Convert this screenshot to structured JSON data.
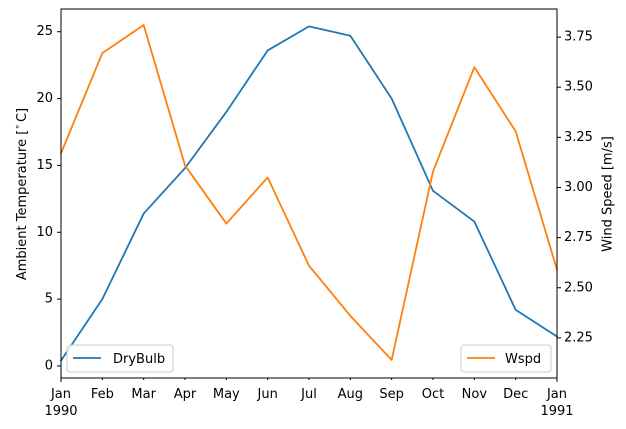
{
  "chart_data": {
    "type": "line",
    "title": "",
    "x": [
      "1990-01",
      "1990-02",
      "1990-03",
      "1990-04",
      "1990-05",
      "1990-06",
      "1990-07",
      "1990-08",
      "1990-09",
      "1990-10",
      "1990-11",
      "1990-12",
      "1991-01"
    ],
    "x_tick_labels": [
      "Jan",
      "Feb",
      "Mar",
      "Apr",
      "May",
      "Jun",
      "Jul",
      "Aug",
      "Sep",
      "Oct",
      "Nov",
      "Dec",
      "Jan"
    ],
    "x_year_labels": [
      "1990",
      "1991"
    ],
    "left_axis": {
      "label": "Ambient Temperature [°C]",
      "label_main": "Ambient Temperature [",
      "label_degree": "∘",
      "label_unit": "C]",
      "ylim": [
        -0.9,
        26.7
      ],
      "ticks": [
        0,
        5,
        10,
        15,
        20,
        25
      ],
      "tick_labels": [
        "0",
        "5",
        "10",
        "15",
        "20",
        "25"
      ]
    },
    "right_axis": {
      "label": "Wind Speed [m/s]",
      "ylim": [
        2.05,
        3.89
      ],
      "ticks": [
        2.25,
        2.5,
        2.75,
        3.0,
        3.25,
        3.5,
        3.75
      ],
      "tick_labels": [
        "2.25",
        "2.50",
        "2.75",
        "3.00",
        "3.25",
        "3.50",
        "3.75"
      ]
    },
    "series": [
      {
        "name": "DryBulb",
        "axis": "left",
        "color": "#1f77b4",
        "values": [
          0.4,
          5.0,
          11.4,
          14.8,
          19.0,
          23.6,
          25.4,
          24.7,
          20.0,
          13.1,
          10.8,
          4.2,
          2.2
        ]
      },
      {
        "name": "Wspd",
        "axis": "right",
        "color": "#ff7f0e",
        "values": [
          3.17,
          3.67,
          3.81,
          3.11,
          2.82,
          3.05,
          2.61,
          2.36,
          2.14,
          3.08,
          3.6,
          3.28,
          2.59
        ]
      }
    ],
    "legends": [
      {
        "series": "DryBulb",
        "placement": "lower-left"
      },
      {
        "series": "Wspd",
        "placement": "lower-right"
      }
    ],
    "grid": false
  }
}
